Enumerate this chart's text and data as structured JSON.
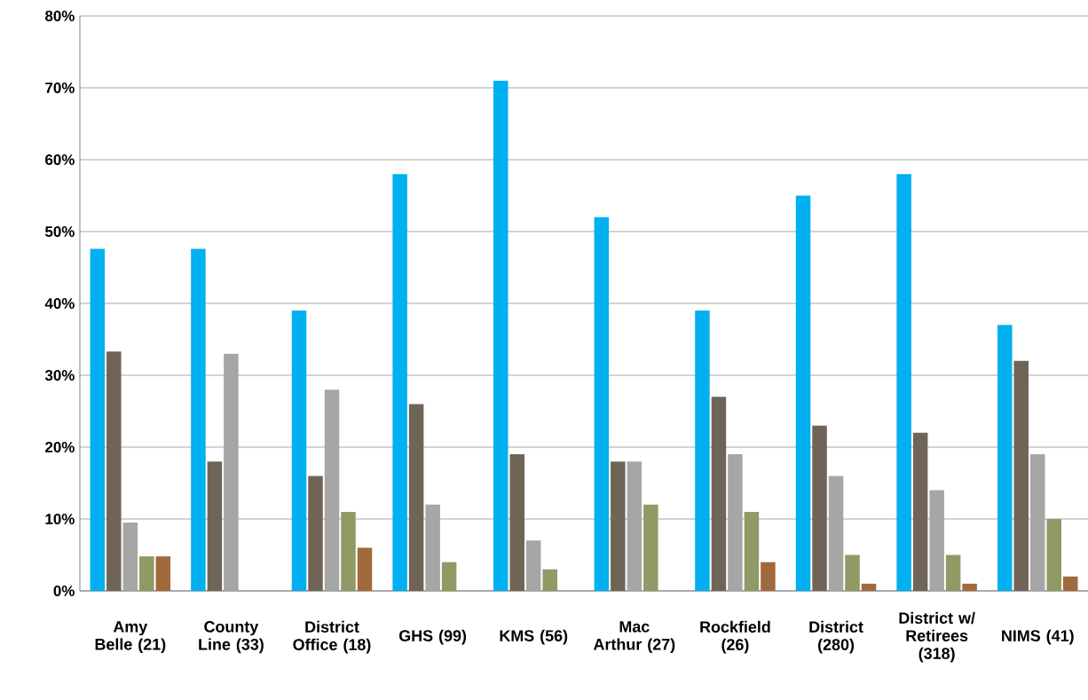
{
  "chart_data": {
    "type": "bar",
    "categories": [
      "Amy Belle (21)",
      "County Line (33)",
      "District Office (18)",
      "GHS (99)",
      "KMS (56)",
      "Mac Arthur (27)",
      "Rockfield (26)",
      "District (280)",
      "District w/ Retirees (318)",
      "NIMS (41)"
    ],
    "series": [
      {
        "color": "#00b0f0",
        "values": [
          47.6,
          47.6,
          39,
          58,
          71,
          52,
          39,
          55,
          58,
          37
        ]
      },
      {
        "color": "#6f6456",
        "values": [
          33.3,
          18,
          16,
          26,
          19,
          18,
          27,
          23,
          22,
          32
        ]
      },
      {
        "color": "#a6a6a6",
        "values": [
          9.5,
          33,
          28,
          12,
          7,
          18,
          19,
          16,
          14,
          19
        ]
      },
      {
        "color": "#8f9a64",
        "values": [
          4.8,
          0,
          11,
          4,
          3,
          12,
          11,
          5,
          5,
          10
        ]
      },
      {
        "color": "#a06a3c",
        "values": [
          4.8,
          0,
          6,
          0,
          0,
          0,
          4,
          1,
          1,
          2
        ]
      }
    ],
    "ylim": [
      0,
      80
    ],
    "yticks": [
      {
        "value": 0,
        "label": "0%"
      },
      {
        "value": 10,
        "label": "10%"
      },
      {
        "value": 20,
        "label": "20%"
      },
      {
        "value": 30,
        "label": "30%"
      },
      {
        "value": 40,
        "label": "40%"
      },
      {
        "value": 50,
        "label": "50%"
      },
      {
        "value": 60,
        "label": "60%"
      },
      {
        "value": 70,
        "label": "70%"
      },
      {
        "value": 80,
        "label": "80%"
      }
    ],
    "grid": "y"
  }
}
